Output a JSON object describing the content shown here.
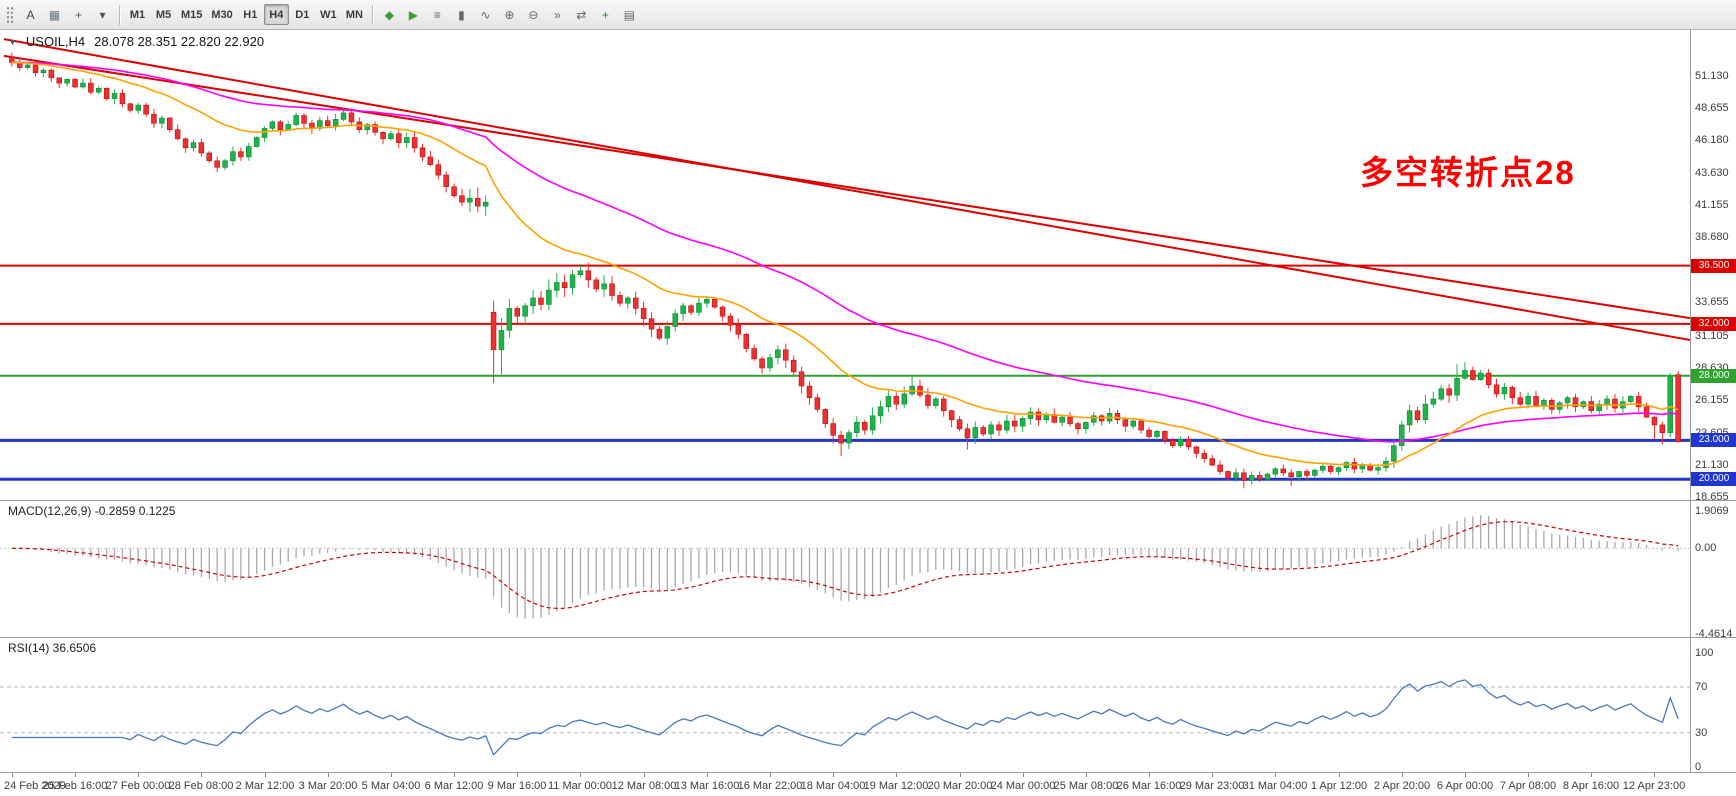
{
  "toolbar": {
    "left_tools": [
      {
        "name": "cursor-tool-button",
        "glyph": "A",
        "color": "#444444"
      },
      {
        "name": "chart-window-button",
        "glyph": "▦",
        "color": "#667788"
      },
      {
        "name": "crosshair-button",
        "glyph": "+",
        "color": "#555555"
      },
      {
        "name": "drawing-tools-dropdown",
        "glyph": "▾",
        "color": "#555555"
      }
    ],
    "timeframes": [
      "M1",
      "M5",
      "M15",
      "M30",
      "H1",
      "H4",
      "D1",
      "W1",
      "MN"
    ],
    "active_timeframe": "H4",
    "right_tools": [
      {
        "name": "new-order-button",
        "glyph": "◆",
        "color": "#3a9e3a"
      },
      {
        "name": "autotrading-button",
        "glyph": "▶",
        "color": "#3a9e3a"
      },
      {
        "name": "bar-chart-button",
        "glyph": "≡",
        "color": "#666666"
      },
      {
        "name": "candlestick-chart-button",
        "glyph": "▮",
        "color": "#666666"
      },
      {
        "name": "line-chart-button",
        "glyph": "∿",
        "color": "#666666"
      },
      {
        "name": "zoom-in-button",
        "glyph": "⊕",
        "color": "#666666"
      },
      {
        "name": "zoom-out-button",
        "glyph": "⊖",
        "color": "#666666"
      },
      {
        "name": "auto-scroll-button",
        "glyph": "»",
        "color": "#666666"
      },
      {
        "name": "chart-shift-button",
        "glyph": "⇄",
        "color": "#666666"
      },
      {
        "name": "indicators-button",
        "glyph": "+",
        "color": "#2e8b2e"
      },
      {
        "name": "templates-button",
        "glyph": "▤",
        "color": "#666666"
      }
    ]
  },
  "chart_data": {
    "type": "candlestick",
    "symbol": "USOIL",
    "timeframe": "H4",
    "legend_symbol": "USOIL,H4",
    "legend_ohlc": "28.078 28.351 22.820 22.920",
    "annotation": {
      "text": "多空转折点28",
      "color": "#ff0000"
    },
    "up_color": "#21b24b",
    "up_border": "#0d8a33",
    "down_color": "#ee3030",
    "down_border": "#b41414",
    "price_scale": {
      "pmax": 54.7,
      "pmin": 18.4,
      "labels": [
        [
          51.13,
          "51.130"
        ],
        [
          48.655,
          "48.655"
        ],
        [
          46.18,
          "46.180"
        ],
        [
          43.63,
          "43.630"
        ],
        [
          41.155,
          "41.155"
        ],
        [
          38.68,
          "38.680"
        ],
        [
          33.655,
          "33.655"
        ],
        [
          31.105,
          "31.105"
        ],
        [
          28.63,
          "28.630"
        ],
        [
          26.155,
          "26.155"
        ],
        [
          23.605,
          "23.605"
        ],
        [
          21.13,
          "21.130"
        ],
        [
          18.655,
          "18.655"
        ]
      ]
    },
    "hlines": [
      {
        "price": 36.5,
        "tag": "36.500",
        "color": "#dd0000",
        "width": 2
      },
      {
        "price": 32.0,
        "tag": "32.000",
        "color": "#dd0000",
        "width": 2
      },
      {
        "price": 28.0,
        "tag": "28.000",
        "color": "#2fa32f",
        "width": 2
      },
      {
        "price": 23.0,
        "tag": "23.000",
        "color": "#2136cf",
        "width": 3
      },
      {
        "price": 20.0,
        "tag": "20.000",
        "color": "#2136cf",
        "width": 3
      }
    ],
    "trendlines": [
      {
        "i1": -1,
        "p1": 52.7,
        "i2": 213,
        "p2": 32.4,
        "color": "#dd0000"
      },
      {
        "i1": -1,
        "p1": 54.0,
        "i2": 213,
        "p2": 30.7,
        "color": "#dd0000"
      }
    ],
    "ma_fast": {
      "period": 21,
      "color": "#ffa200"
    },
    "ma_slow": {
      "period": 55,
      "color": "#ff00ff"
    },
    "closes": [
      52.2,
      51.8,
      52.0,
      51.4,
      51.6,
      51.0,
      50.6,
      50.9,
      50.3,
      50.6,
      49.9,
      50.2,
      49.4,
      49.8,
      49.0,
      48.5,
      48.9,
      48.2,
      47.5,
      47.9,
      47.0,
      46.3,
      45.6,
      46.0,
      45.2,
      44.6,
      44.1,
      44.6,
      45.3,
      44.9,
      45.7,
      46.4,
      47.1,
      47.6,
      47.0,
      47.4,
      48.1,
      47.5,
      47.1,
      47.7,
      47.3,
      47.8,
      48.3,
      47.6,
      47.0,
      47.4,
      46.8,
      46.3,
      46.7,
      46.0,
      46.4,
      45.6,
      44.9,
      44.3,
      43.5,
      42.6,
      41.9,
      41.4,
      41.7,
      41.1,
      41.4,
      30.0,
      31.5,
      33.2,
      32.6,
      33.4,
      34.0,
      33.5,
      34.6,
      35.2,
      34.8,
      35.8,
      36.1,
      35.4,
      34.7,
      35.1,
      34.2,
      33.6,
      34.0,
      33.2,
      32.4,
      31.6,
      30.9,
      31.8,
      32.8,
      33.4,
      32.9,
      33.6,
      33.9,
      33.3,
      32.6,
      31.9,
      31.2,
      30.1,
      29.3,
      28.6,
      29.4,
      30.0,
      29.2,
      28.3,
      27.2,
      26.3,
      25.4,
      24.3,
      23.4,
      22.8,
      23.6,
      24.4,
      23.8,
      24.9,
      25.6,
      26.4,
      25.8,
      26.6,
      27.2,
      26.5,
      25.7,
      26.2,
      25.3,
      24.6,
      23.9,
      23.2,
      24.0,
      23.5,
      24.2,
      23.8,
      24.5,
      24.1,
      24.7,
      25.2,
      24.6,
      25.0,
      24.4,
      24.8,
      24.3,
      23.9,
      24.4,
      24.9,
      24.5,
      25.1,
      24.6,
      24.1,
      24.5,
      23.8,
      23.3,
      23.7,
      23.0,
      22.6,
      23.1,
      22.5,
      22.0,
      21.6,
      21.1,
      20.6,
      20.1,
      20.5,
      19.9,
      20.3,
      20.0,
      20.4,
      20.8,
      20.5,
      20.2,
      20.6,
      20.3,
      20.7,
      21.0,
      20.6,
      20.9,
      21.3,
      20.8,
      21.1,
      20.7,
      20.9,
      21.4,
      22.6,
      24.2,
      25.3,
      24.6,
      25.8,
      26.2,
      27.0,
      26.5,
      27.8,
      28.4,
      27.7,
      28.2,
      27.3,
      26.6,
      27.1,
      26.3,
      25.8,
      26.4,
      25.7,
      26.1,
      25.4,
      25.9,
      26.3,
      25.6,
      26.0,
      25.3,
      25.8,
      26.2,
      25.5,
      26.0,
      26.4,
      25.6,
      24.8,
      24.2,
      23.6,
      27.9,
      22.92
    ],
    "overrides": {
      "61": {
        "open": 32.9,
        "low": 27.4
      },
      "62": {
        "low": 28.1
      },
      "72": {
        "high": 36.62
      },
      "105": {
        "low": 21.8
      },
      "114": {
        "high": 27.9
      },
      "121": {
        "low": 22.3
      },
      "156": {
        "low": 19.3
      },
      "162": {
        "low": 19.5
      },
      "183": {
        "high": 28.9
      },
      "184": {
        "high": 29.05
      },
      "208": {
        "low": 23.1
      },
      "209": {
        "low": 22.7
      },
      "210": {
        "high": 28.2
      },
      "211": {
        "open": 28.078,
        "high": 28.351,
        "low": 22.82
      }
    },
    "wick_vol": [
      [
        0,
        0.45
      ],
      [
        55,
        0.55
      ],
      [
        60,
        1.15
      ],
      [
        75,
        0.85
      ],
      [
        95,
        0.7
      ],
      [
        110,
        0.8
      ],
      [
        125,
        0.6
      ],
      [
        148,
        0.45
      ],
      [
        172,
        0.4
      ],
      [
        178,
        0.85
      ],
      [
        192,
        0.55
      ],
      [
        206,
        0.5
      ],
      [
        211,
        0.4
      ]
    ],
    "macd": {
      "label": "MACD(12,26,9) -0.2859 0.1225",
      "fast": 12,
      "slow": 26,
      "signal": 9,
      "vmax": 2.45,
      "vmin": -4.6,
      "histogram_color": "#a9a9a9",
      "signal_color": "#d00000",
      "scale_labels": [
        [
          1.9069,
          "1.9069"
        ],
        [
          0,
          "0.00"
        ],
        [
          -4.4614,
          "-4.4614"
        ]
      ]
    },
    "rsi": {
      "label": "RSI(14) 36.6506",
      "period": 14,
      "color": "#4878c0",
      "vmax": 113,
      "vmin": -4.5,
      "levels": [
        70,
        30
      ],
      "level_color": "#aab6c5",
      "scale_labels": [
        [
          100,
          "100"
        ],
        [
          70,
          "70"
        ],
        [
          30,
          "30"
        ],
        [
          0,
          "0"
        ]
      ]
    },
    "time_labels": [
      [
        0,
        "24 Feb 2020"
      ],
      [
        8,
        "25 Feb 16:00"
      ],
      [
        16,
        "27 Feb 00:00"
      ],
      [
        24,
        "28 Feb 08:00"
      ],
      [
        32,
        "2 Mar 12:00"
      ],
      [
        40,
        "3 Mar 20:00"
      ],
      [
        48,
        "5 Mar 04:00"
      ],
      [
        56,
        "6 Mar 12:00"
      ],
      [
        64,
        "9 Mar 16:00"
      ],
      [
        72,
        "11 Mar 00:00"
      ],
      [
        80,
        "12 Mar 08:00"
      ],
      [
        88,
        "13 Mar 16:00"
      ],
      [
        96,
        "16 Mar 22:00"
      ],
      [
        104,
        "18 Mar 04:00"
      ],
      [
        112,
        "19 Mar 12:00"
      ],
      [
        120,
        "20 Mar 20:00"
      ],
      [
        128,
        "24 Mar 00:00"
      ],
      [
        136,
        "25 Mar 08:00"
      ],
      [
        144,
        "26 Mar 16:00"
      ],
      [
        152,
        "29 Mar 23:00"
      ],
      [
        160,
        "31 Mar 04:00"
      ],
      [
        168,
        "1 Apr 12:00"
      ],
      [
        176,
        "2 Apr 20:00"
      ],
      [
        184,
        "6 Apr 00:00"
      ],
      [
        192,
        "7 Apr 08:00"
      ],
      [
        200,
        "8 Apr 16:00"
      ],
      [
        208,
        "12 Apr 23:00"
      ]
    ]
  }
}
